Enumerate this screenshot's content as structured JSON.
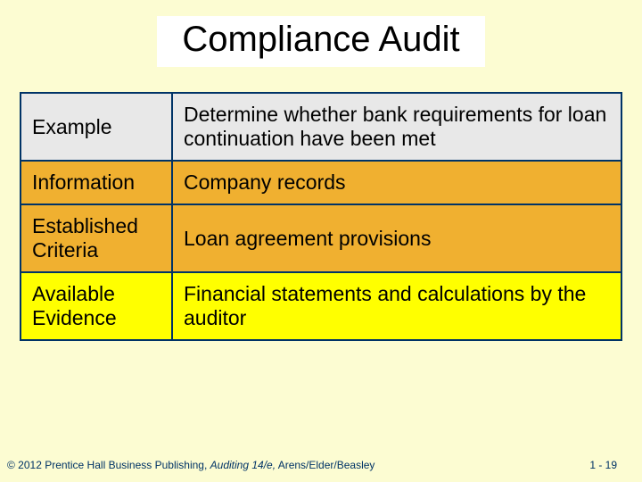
{
  "slide": {
    "background_color": "#fcfcd2",
    "title": {
      "text": "Compliance Audit",
      "highlight_color": "#ffffff",
      "fontsize": 40,
      "color": "#000000"
    },
    "table": {
      "border_color": "#003366",
      "label_col_width": 170,
      "cell_fontsize": 23,
      "text_color": "#000000",
      "rows": [
        {
          "label": "Example",
          "value": "Determine whether bank requirements for loan continuation have been met",
          "bg": "#e8e8e8"
        },
        {
          "label": "Information",
          "value": "Company records",
          "bg": "#f0b030"
        },
        {
          "label": "Established Criteria",
          "value": "Loan agreement provisions",
          "bg": "#f0b030"
        },
        {
          "label": "Available Evidence",
          "value": "Financial statements and calculations by the auditor",
          "bg": "#ffff00"
        }
      ]
    },
    "footer": {
      "left_prefix": "© 2012 Prentice Hall Business Publishing, ",
      "left_italic": "Auditing 14/e,",
      "left_suffix": " Arens/Elder/Beasley",
      "page": "1 - 19",
      "fontsize": 12,
      "color": "#003366"
    }
  }
}
